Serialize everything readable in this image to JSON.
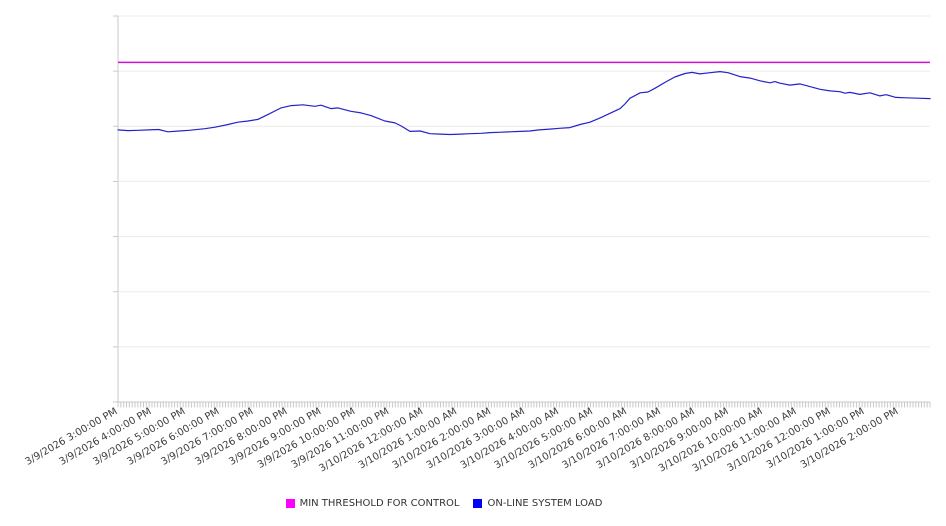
{
  "chart_data": {
    "type": "line",
    "title": "",
    "legend_position": "bottom",
    "grid": true,
    "x_axis": {
      "range_hours": [
        0,
        23.9167
      ],
      "minor_tick_interval_minutes": 5,
      "tick_label_rotation_deg": -30,
      "tick_labels": [
        "3/9/2026 3:00:00 PM",
        "3/9/2026 4:00:00 PM",
        "3/9/2026 5:00:00 PM",
        "3/9/2026 6:00:00 PM",
        "3/9/2026 7:00:00 PM",
        "3/9/2026 8:00:00 PM",
        "3/9/2026 9:00:00 PM",
        "3/9/2026 10:00:00 PM",
        "3/9/2026 11:00:00 PM",
        "3/10/2026 12:00:00 AM",
        "3/10/2026 1:00:00 AM",
        "3/10/2026 2:00:00 AM",
        "3/10/2026 3:00:00 AM",
        "3/10/2026 4:00:00 AM",
        "3/10/2026 5:00:00 AM",
        "3/10/2026 6:00:00 AM",
        "3/10/2026 7:00:00 AM",
        "3/10/2026 8:00:00 AM",
        "3/10/2026 9:00:00 AM",
        "3/10/2026 10:00:00 AM",
        "3/10/2026 11:00:00 AM",
        "3/10/2026 12:00:00 PM",
        "3/10/2026 1:00:00 PM",
        "3/10/2026 2:00:00 PM"
      ]
    },
    "y_axis": {
      "labels_visible": false,
      "ylim": [
        0,
        100
      ],
      "gridline_divisions": 7
    },
    "series": [
      {
        "name": "MIN THRESHOLD FOR CONTROL",
        "type": "threshold",
        "color": "#d40fd4",
        "swatch_color": "#ff00ff",
        "value": 88.0
      },
      {
        "name": "ON-LINE SYSTEM LOAD",
        "type": "line",
        "color": "#2323cc",
        "swatch_color": "#0000ff",
        "points": [
          [
            0,
            70.5
          ],
          [
            0.3,
            70.3
          ],
          [
            0.6,
            70.4
          ],
          [
            0.9,
            70.5
          ],
          [
            1.2,
            70.6
          ],
          [
            1.47,
            70.0
          ],
          [
            1.8,
            70.2
          ],
          [
            2.1,
            70.4
          ],
          [
            2.56,
            70.8
          ],
          [
            2.86,
            71.2
          ],
          [
            3.24,
            71.9
          ],
          [
            3.53,
            72.5
          ],
          [
            3.83,
            72.8
          ],
          [
            4.12,
            73.2
          ],
          [
            4.42,
            74.5
          ],
          [
            4.8,
            76.2
          ],
          [
            5.1,
            76.8
          ],
          [
            5.45,
            77.0
          ],
          [
            5.8,
            76.6
          ],
          [
            5.98,
            76.9
          ],
          [
            6.27,
            76.0
          ],
          [
            6.48,
            76.2
          ],
          [
            6.86,
            75.3
          ],
          [
            7.16,
            74.9
          ],
          [
            7.45,
            74.2
          ],
          [
            7.86,
            72.8
          ],
          [
            8.16,
            72.3
          ],
          [
            8.34,
            71.5
          ],
          [
            8.6,
            70.1
          ],
          [
            8.9,
            70.2
          ],
          [
            9.19,
            69.5
          ],
          [
            9.5,
            69.4
          ],
          [
            9.78,
            69.3
          ],
          [
            10.1,
            69.4
          ],
          [
            10.37,
            69.5
          ],
          [
            10.7,
            69.6
          ],
          [
            10.96,
            69.8
          ],
          [
            11.3,
            69.9
          ],
          [
            11.55,
            70.0
          ],
          [
            11.85,
            70.1
          ],
          [
            12.13,
            70.2
          ],
          [
            12.4,
            70.5
          ],
          [
            12.72,
            70.7
          ],
          [
            13.0,
            70.9
          ],
          [
            13.31,
            71.1
          ],
          [
            13.61,
            71.9
          ],
          [
            13.9,
            72.5
          ],
          [
            14.2,
            73.6
          ],
          [
            14.49,
            74.8
          ],
          [
            14.79,
            76.0
          ],
          [
            14.93,
            77.2
          ],
          [
            15.08,
            78.7
          ],
          [
            15.38,
            80.1
          ],
          [
            15.61,
            80.3
          ],
          [
            15.82,
            81.3
          ],
          [
            16.11,
            82.8
          ],
          [
            16.4,
            84.2
          ],
          [
            16.7,
            85.1
          ],
          [
            16.91,
            85.4
          ],
          [
            17.14,
            85.0
          ],
          [
            17.44,
            85.3
          ],
          [
            17.73,
            85.6
          ],
          [
            17.97,
            85.3
          ],
          [
            18.32,
            84.3
          ],
          [
            18.62,
            83.9
          ],
          [
            18.91,
            83.2
          ],
          [
            19.2,
            82.7
          ],
          [
            19.35,
            83.0
          ],
          [
            19.5,
            82.6
          ],
          [
            19.79,
            82.1
          ],
          [
            20.09,
            82.4
          ],
          [
            20.38,
            81.7
          ],
          [
            20.68,
            81.0
          ],
          [
            20.97,
            80.6
          ],
          [
            21.27,
            80.4
          ],
          [
            21.41,
            80.0
          ],
          [
            21.56,
            80.2
          ],
          [
            21.85,
            79.7
          ],
          [
            22.15,
            80.1
          ],
          [
            22.44,
            79.3
          ],
          [
            22.62,
            79.6
          ],
          [
            22.91,
            78.9
          ],
          [
            23.2,
            78.8
          ],
          [
            23.56,
            78.7
          ],
          [
            23.92,
            78.6
          ]
        ]
      }
    ]
  },
  "legend": {
    "items": [
      {
        "label": "MIN THRESHOLD FOR CONTROL",
        "color": "#ff00ff"
      },
      {
        "label": "ON-LINE SYSTEM LOAD",
        "color": "#0000ff"
      }
    ]
  },
  "colors": {
    "background": "#ffffff",
    "gridline": "#ebebeb",
    "axis_line": "#c9c9c9",
    "tick": "#c9c9c9",
    "axis_label_text": "#3d3d3d",
    "legend_text": "#333333"
  }
}
